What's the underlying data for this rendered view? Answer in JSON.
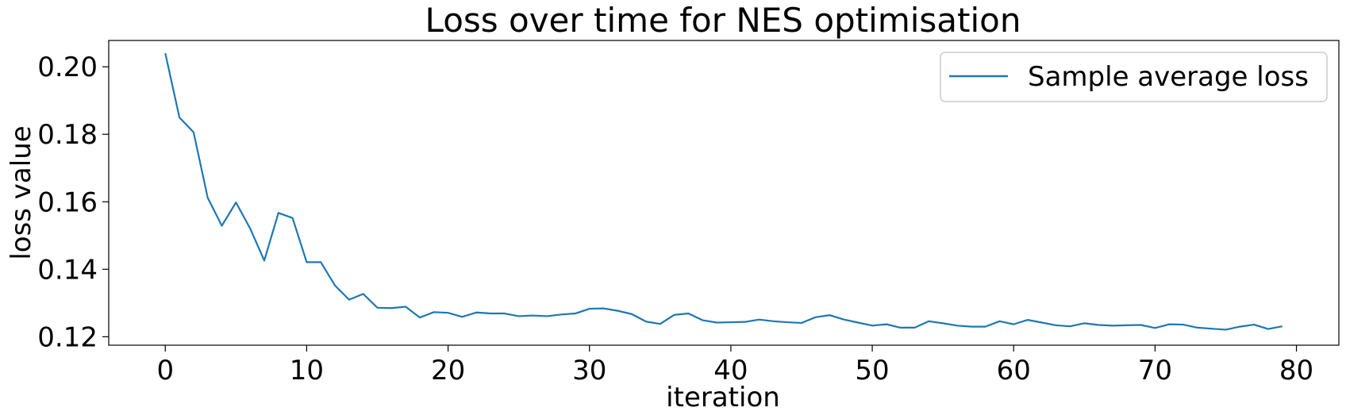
{
  "chart_data": {
    "type": "line",
    "title": "Loss over time for NES optimisation",
    "xlabel": "iteration",
    "ylabel": "loss value",
    "xlim": [
      -4,
      83
    ],
    "ylim": [
      0.1175,
      0.2078
    ],
    "xticks": [
      0,
      10,
      20,
      30,
      40,
      50,
      60,
      70,
      80
    ],
    "yticks": [
      0.12,
      0.14,
      0.16,
      0.18,
      0.2
    ],
    "xtick_labels": [
      "0",
      "10",
      "20",
      "30",
      "40",
      "50",
      "60",
      "70",
      "80"
    ],
    "ytick_labels": [
      "0.12",
      "0.14",
      "0.16",
      "0.18",
      "0.20"
    ],
    "grid": false,
    "legend_position": "top-right",
    "series": [
      {
        "name": "Sample average loss",
        "color": "#1f77b4",
        "x": [
          0,
          1,
          2,
          3,
          4,
          5,
          6,
          7,
          8,
          9,
          10,
          11,
          12,
          13,
          14,
          15,
          16,
          17,
          18,
          19,
          20,
          21,
          22,
          23,
          24,
          25,
          26,
          27,
          28,
          29,
          30,
          31,
          32,
          33,
          34,
          35,
          36,
          37,
          38,
          39,
          40,
          41,
          42,
          43,
          44,
          45,
          46,
          47,
          48,
          49,
          50,
          51,
          52,
          53,
          54,
          55,
          56,
          57,
          58,
          59,
          60,
          61,
          62,
          63,
          64,
          65,
          66,
          67,
          68,
          69,
          70,
          71,
          72,
          73,
          74,
          75,
          76,
          77,
          78,
          79
        ],
        "values": [
          0.204,
          0.185,
          0.1806,
          0.1612,
          0.1529,
          0.1598,
          0.1521,
          0.1426,
          0.1567,
          0.1552,
          0.1421,
          0.1421,
          0.1352,
          0.131,
          0.1327,
          0.1286,
          0.1285,
          0.1289,
          0.1257,
          0.1273,
          0.1271,
          0.1259,
          0.1272,
          0.1269,
          0.1269,
          0.1261,
          0.1263,
          0.1261,
          0.1266,
          0.1269,
          0.1283,
          0.1284,
          0.1277,
          0.1267,
          0.1245,
          0.1238,
          0.1265,
          0.1269,
          0.1249,
          0.1242,
          0.1243,
          0.1244,
          0.1251,
          0.1246,
          0.1243,
          0.1241,
          0.1258,
          0.1264,
          0.1251,
          0.1242,
          0.1233,
          0.1237,
          0.1227,
          0.1227,
          0.1246,
          0.124,
          0.1233,
          0.123,
          0.123,
          0.1246,
          0.1237,
          0.125,
          0.1242,
          0.1234,
          0.1231,
          0.124,
          0.1235,
          0.1233,
          0.1234,
          0.1235,
          0.1226,
          0.1237,
          0.1236,
          0.1227,
          0.1224,
          0.1221,
          0.123,
          0.1236,
          0.1223,
          0.1231
        ]
      }
    ]
  }
}
